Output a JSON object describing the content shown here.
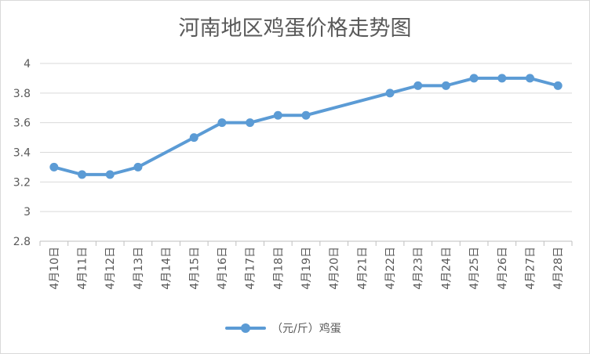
{
  "chart_data": {
    "type": "line",
    "title": "河南地区鸡蛋价格走势图",
    "xlabel": "",
    "ylabel": "",
    "categories": [
      "4月10日",
      "4月11日",
      "4月12日",
      "4月13日",
      "4月14日",
      "4月15日",
      "4月16日",
      "4月17日",
      "4月18日",
      "4月19日",
      "4月20日",
      "4月21日",
      "4月22日",
      "4月23日",
      "4月24日",
      "4月25日",
      "4月26日",
      "4月27日",
      "4月28日"
    ],
    "series": [
      {
        "name": "（元/斤）鸡蛋",
        "values": [
          3.3,
          3.25,
          3.25,
          3.3,
          null,
          3.5,
          3.6,
          3.6,
          3.65,
          3.65,
          null,
          null,
          3.8,
          3.85,
          3.85,
          3.9,
          3.9,
          3.9,
          3.85
        ]
      }
    ],
    "ylim": [
      2.8,
      4
    ],
    "yticks": [
      "2.8",
      "3",
      "3.2",
      "3.4",
      "3.6",
      "3.8",
      "4"
    ],
    "grid": true,
    "legend_position": "bottom",
    "colors": {
      "series": "#5b9bd5",
      "grid": "#d9d9d9",
      "text": "#595959"
    }
  }
}
